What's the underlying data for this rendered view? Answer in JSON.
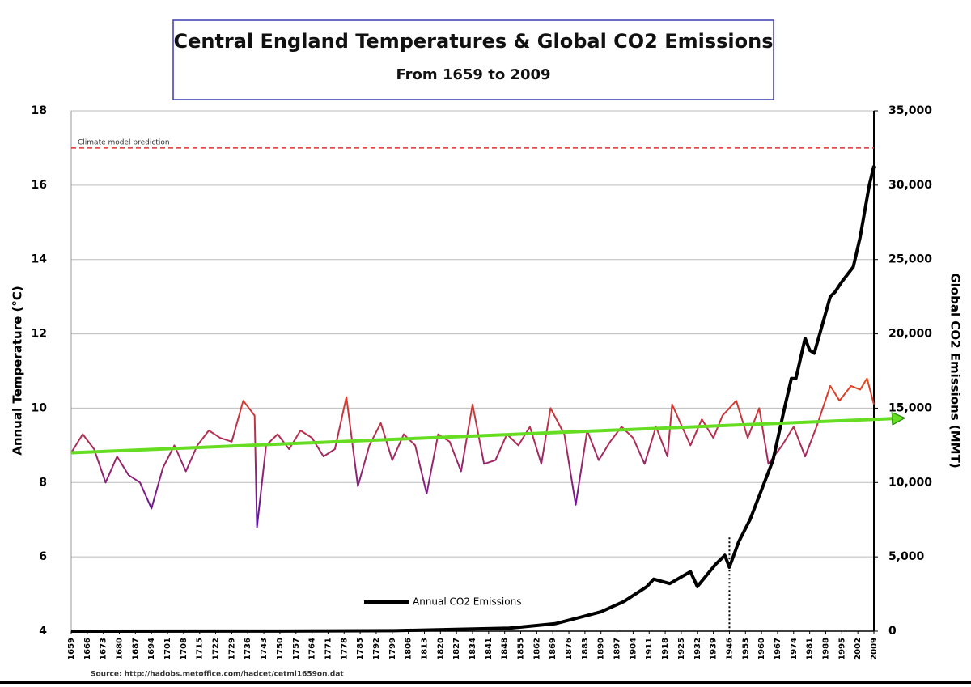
{
  "chart_data": {
    "type": "line",
    "title": "Central England Temperatures & Global CO2 Emissions",
    "subtitle": "From 1659 to 2009",
    "y_label": "Annual Temperature (°C)",
    "y2_label": "Global CO2 Emissions (MMT)",
    "source": "Source: http://hadobs.metoffice.com/hadcet/cetml1659on.dat",
    "xlim": [
      1659,
      2009
    ],
    "xticks": [
      1659,
      1666,
      1673,
      1680,
      1687,
      1694,
      1701,
      1708,
      1715,
      1722,
      1729,
      1736,
      1743,
      1750,
      1757,
      1764,
      1771,
      1778,
      1785,
      1792,
      1799,
      1806,
      1813,
      1820,
      1827,
      1834,
      1841,
      1848,
      1855,
      1862,
      1869,
      1876,
      1883,
      1890,
      1897,
      1904,
      1911,
      1918,
      1925,
      1932,
      1939,
      1946,
      1953,
      1960,
      1967,
      1974,
      1981,
      1988,
      1995,
      2002,
      2009
    ],
    "ylim": [
      4,
      18
    ],
    "yticks": [
      4,
      6,
      8,
      10,
      12,
      14,
      16,
      18
    ],
    "y2lim": [
      0,
      35000
    ],
    "y2ticks": [
      0,
      {
        "value": 5000,
        "label": "5,000"
      },
      {
        "value": 10000,
        "label": "10,000"
      },
      {
        "value": 15000,
        "label": "15,000"
      },
      {
        "value": 20000,
        "label": "20,000"
      },
      {
        "value": 25000,
        "label": "25,000"
      },
      {
        "value": 30000,
        "label": "30,000"
      },
      {
        "value": 35000,
        "label": "35,000"
      }
    ],
    "grid": true,
    "reference_line": {
      "value": 17,
      "label": "Climate model prediction",
      "color": "#e03030"
    },
    "marker_x": 1946,
    "trend": {
      "x": [
        1659,
        2009
      ],
      "values": [
        8.8,
        9.7
      ],
      "color": "#66dd22"
    },
    "series": [
      {
        "color_low": "#5a10a8",
        "color_high": "#ee4418",
        "x": [
          1659,
          1664,
          1669,
          1674,
          1679,
          1684,
          1689,
          1694,
          1699,
          1704,
          1709,
          1714,
          1719,
          1724,
          1729,
          1734,
          1739,
          1740,
          1744,
          1749,
          1754,
          1759,
          1764,
          1769,
          1774,
          1779,
          1784,
          1789,
          1794,
          1799,
          1804,
          1809,
          1814,
          1819,
          1824,
          1829,
          1834,
          1839,
          1844,
          1849,
          1854,
          1859,
          1864,
          1868,
          1874,
          1879,
          1884,
          1889,
          1894,
          1899,
          1904,
          1909,
          1914,
          1919,
          1921,
          1929,
          1934,
          1939,
          1943,
          1949,
          1954,
          1959,
          1963,
          1969,
          1974,
          1979,
          1984,
          1990,
          1994,
          1999,
          2003,
          2006,
          2009
        ],
        "values": [
          8.8,
          9.3,
          8.9,
          8.0,
          8.7,
          8.2,
          8.0,
          7.3,
          8.4,
          9.0,
          8.3,
          9.0,
          9.4,
          9.2,
          9.1,
          10.2,
          9.8,
          6.8,
          9.0,
          9.3,
          8.9,
          9.4,
          9.2,
          8.7,
          8.9,
          10.3,
          7.9,
          9.0,
          9.6,
          8.6,
          9.3,
          9.0,
          7.7,
          9.3,
          9.1,
          8.3,
          10.1,
          8.5,
          8.6,
          9.3,
          9.0,
          9.5,
          8.5,
          10.0,
          9.3,
          7.4,
          9.4,
          8.6,
          9.1,
          9.5,
          9.2,
          8.5,
          9.5,
          8.7,
          10.1,
          9.0,
          9.7,
          9.2,
          9.8,
          10.2,
          9.2,
          10.0,
          8.5,
          9.0,
          9.5,
          8.7,
          9.5,
          10.6,
          10.2,
          10.6,
          10.5,
          10.8,
          10.1
        ]
      },
      {
        "name": "Annual CO2 Emissions",
        "color": "#000000",
        "axis": "y2",
        "x": [
          1659,
          1750,
          1800,
          1850,
          1870,
          1880,
          1890,
          1900,
          1910,
          1913,
          1920,
          1929,
          1932,
          1940,
          1944,
          1946,
          1950,
          1955,
          1960,
          1965,
          1970,
          1973,
          1975,
          1979,
          1981,
          1983,
          1990,
          1992,
          1995,
          2000,
          2003,
          2007,
          2009
        ],
        "values": [
          0,
          3,
          30,
          200,
          500,
          900,
          1300,
          2000,
          3000,
          3500,
          3200,
          4000,
          3000,
          4500,
          5100,
          4300,
          6000,
          7500,
          9500,
          11500,
          15000,
          17000,
          17000,
          19700,
          18900,
          18700,
          22500,
          22800,
          23500,
          24500,
          26500,
          30000,
          31300
        ]
      }
    ]
  }
}
